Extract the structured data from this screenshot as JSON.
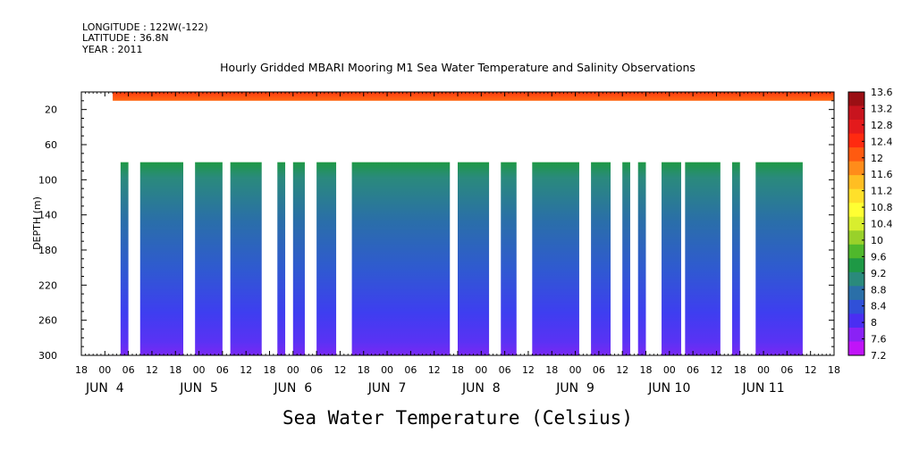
{
  "header": {
    "longitude": "LONGITUDE : 122W(-122)",
    "latitude": "LATITUDE : 36.8N",
    "year": "YEAR : 2011"
  },
  "chart_data": {
    "type": "heatmap",
    "title": "Hourly Gridded MBARI Mooring M1 Sea Water Temperature and Salinity Observations",
    "xlabel": "",
    "ylabel": "DEPTH (m)",
    "variable_label": "Sea Water Temperature (Celsius)",
    "y_axis": {
      "min": 0,
      "max": 300,
      "reversed": true,
      "ticks": [
        20,
        60,
        100,
        140,
        180,
        220,
        260,
        300
      ]
    },
    "x_axis": {
      "start": "2011-06-03T18:00",
      "end": "2011-06-11T18:00",
      "hour_ticks": [
        "18",
        "00",
        "06",
        "12",
        "18",
        "00",
        "06",
        "12",
        "18",
        "00",
        "06",
        "12",
        "18",
        "00",
        "06",
        "12",
        "18",
        "00",
        "06",
        "12",
        "18",
        "00",
        "06",
        "12",
        "18",
        "00",
        "06",
        "12",
        "18",
        "00",
        "06",
        "12",
        "18"
      ],
      "day_labels": [
        "JUN  4",
        "JUN  5",
        "JUN  6",
        "JUN  7",
        "JUN  8",
        "JUN  9",
        "JUN 10",
        "JUN 11"
      ]
    },
    "surface_layer": {
      "depth_range": [
        0,
        10
      ],
      "start": "2011-06-04T02:00",
      "end": "2011-06-11T18:00",
      "approx_value": 12.6
    },
    "deep_layer": {
      "depth_range": [
        80,
        300
      ],
      "approx_profile": [
        {
          "depth": 80,
          "value": 9.2
        },
        {
          "depth": 100,
          "value": 8.9
        },
        {
          "depth": 140,
          "value": 8.7
        },
        {
          "depth": 180,
          "value": 8.3
        },
        {
          "depth": 220,
          "value": 8.0
        },
        {
          "depth": 260,
          "value": 7.8
        },
        {
          "depth": 300,
          "value": 7.5
        }
      ],
      "data_segments": [
        [
          "2011-06-04T04:00",
          "2011-06-04T06:00"
        ],
        [
          "2011-06-04T09:00",
          "2011-06-04T20:00"
        ],
        [
          "2011-06-04T23:00",
          "2011-06-05T06:00"
        ],
        [
          "2011-06-05T08:00",
          "2011-06-05T16:00"
        ],
        [
          "2011-06-05T20:00",
          "2011-06-05T22:00"
        ],
        [
          "2011-06-06T00:00",
          "2011-06-06T03:00"
        ],
        [
          "2011-06-06T06:00",
          "2011-06-06T11:00"
        ],
        [
          "2011-06-06T15:00",
          "2011-06-07T16:00"
        ],
        [
          "2011-06-07T18:00",
          "2011-06-08T02:00"
        ],
        [
          "2011-06-08T05:00",
          "2011-06-08T09:00"
        ],
        [
          "2011-06-08T13:00",
          "2011-06-09T01:00"
        ],
        [
          "2011-06-09T04:00",
          "2011-06-09T09:00"
        ],
        [
          "2011-06-09T12:00",
          "2011-06-09T14:00"
        ],
        [
          "2011-06-09T16:00",
          "2011-06-09T18:00"
        ],
        [
          "2011-06-09T22:00",
          "2011-06-10T03:00"
        ],
        [
          "2011-06-10T04:00",
          "2011-06-10T13:00"
        ],
        [
          "2011-06-10T16:00",
          "2011-06-10T18:00"
        ],
        [
          "2011-06-10T22:00",
          "2011-06-11T10:00"
        ]
      ]
    },
    "colorbar": {
      "labels": [
        "13.6",
        "13.2",
        "12.8",
        "12.4",
        "12",
        "11.6",
        "11.2",
        "10.8",
        "10.4",
        "10",
        "9.6",
        "9.2",
        "8.8",
        "8.4",
        "8",
        "7.6",
        "7.2"
      ],
      "colors": [
        "#9b0f14",
        "#c8141e",
        "#e41a1c",
        "#ff2a10",
        "#ff5a10",
        "#ff8c1a",
        "#ffbe22",
        "#ffe02a",
        "#ffff33",
        "#d8ee2e",
        "#99d12a",
        "#4fb82c",
        "#1e9945",
        "#2a8a7c",
        "#2a6fa8",
        "#3050d8",
        "#4a2ef2",
        "#8a22f5",
        "#c014f8"
      ]
    }
  }
}
